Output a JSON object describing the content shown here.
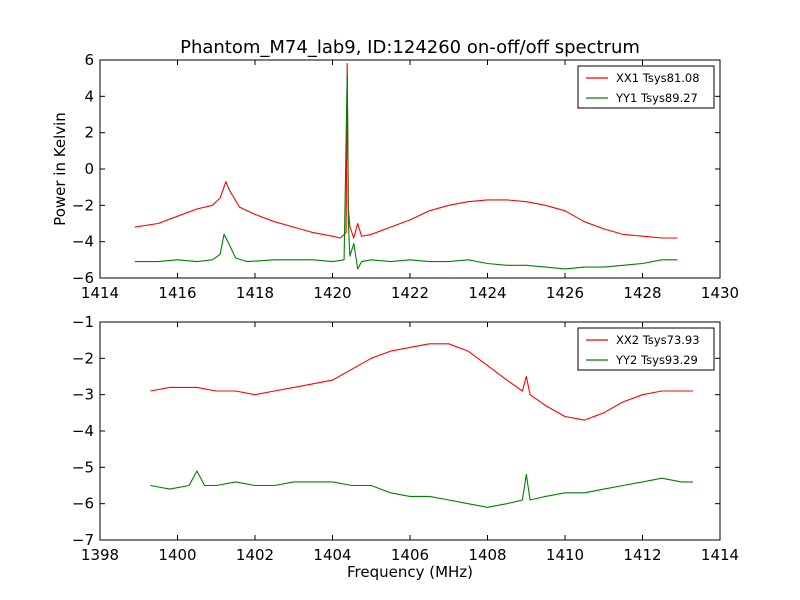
{
  "title": "Phantom_M74_lab9, ID:124260 on-off/off spectrum",
  "chart_data": [
    {
      "type": "line",
      "ylabel": "Power in Kelvin",
      "xlabel": "",
      "xlim": [
        1414,
        1430
      ],
      "ylim": [
        -6,
        6
      ],
      "xticks": [
        "1414",
        "1416",
        "1418",
        "1420",
        "1422",
        "1424",
        "1426",
        "1428",
        "1430"
      ],
      "yticks": [
        "−6",
        "−4",
        "−2",
        "0",
        "2",
        "4",
        "6"
      ],
      "grid": false,
      "legend_position": "top-right",
      "series": [
        {
          "name": "XX1 Tsys81.08",
          "color": "#ff0000",
          "x": [
            1414.9,
            1415.5,
            1416.0,
            1416.5,
            1416.9,
            1417.1,
            1417.25,
            1417.35,
            1417.6,
            1418.0,
            1418.5,
            1419.0,
            1419.5,
            1420.0,
            1420.2,
            1420.35,
            1420.38,
            1420.41,
            1420.45,
            1420.55,
            1420.65,
            1420.75,
            1421.0,
            1421.5,
            1422.0,
            1422.5,
            1423.0,
            1423.5,
            1424.0,
            1424.5,
            1425.0,
            1425.5,
            1426.0,
            1426.5,
            1427.0,
            1427.5,
            1428.0,
            1428.5,
            1428.9
          ],
          "values": [
            -3.2,
            -3.0,
            -2.6,
            -2.2,
            -2.0,
            -1.6,
            -0.7,
            -1.2,
            -2.1,
            -2.5,
            -2.9,
            -3.2,
            -3.5,
            -3.7,
            -3.8,
            -3.5,
            5.8,
            -2.2,
            -3.2,
            -3.8,
            -3.0,
            -3.7,
            -3.6,
            -3.2,
            -2.8,
            -2.3,
            -2.0,
            -1.8,
            -1.7,
            -1.7,
            -1.8,
            -2.0,
            -2.3,
            -2.9,
            -3.3,
            -3.6,
            -3.7,
            -3.8,
            -3.8
          ]
        },
        {
          "name": "YY1 Tsys89.27",
          "color": "#008000",
          "x": [
            1414.9,
            1415.5,
            1416.0,
            1416.5,
            1416.9,
            1417.1,
            1417.2,
            1417.3,
            1417.5,
            1417.8,
            1418.5,
            1419.0,
            1419.5,
            1420.0,
            1420.3,
            1420.38,
            1420.41,
            1420.45,
            1420.55,
            1420.65,
            1420.75,
            1421.0,
            1421.5,
            1422.0,
            1422.5,
            1423.0,
            1423.5,
            1424.0,
            1424.5,
            1425.0,
            1425.5,
            1426.0,
            1426.5,
            1427.0,
            1427.5,
            1428.0,
            1428.5,
            1428.9
          ],
          "values": [
            -5.1,
            -5.1,
            -5.0,
            -5.1,
            -5.0,
            -4.7,
            -3.6,
            -4.0,
            -4.9,
            -5.1,
            -5.0,
            -5.0,
            -5.0,
            -5.1,
            -5.0,
            5.2,
            -3.0,
            -4.8,
            -4.1,
            -5.5,
            -5.1,
            -5.0,
            -5.1,
            -5.0,
            -5.1,
            -5.1,
            -5.0,
            -5.2,
            -5.3,
            -5.3,
            -5.4,
            -5.5,
            -5.4,
            -5.4,
            -5.3,
            -5.2,
            -5.0,
            -5.0
          ]
        }
      ]
    },
    {
      "type": "line",
      "ylabel": "",
      "xlabel": "Frequency (MHz)",
      "xlim": [
        1398,
        1414
      ],
      "ylim": [
        -7,
        -1
      ],
      "xticks": [
        "1398",
        "1400",
        "1402",
        "1404",
        "1406",
        "1408",
        "1410",
        "1412",
        "1414"
      ],
      "yticks": [
        "−7",
        "−6",
        "−5",
        "−4",
        "−3",
        "−2",
        "−1"
      ],
      "grid": false,
      "legend_position": "top-right",
      "series": [
        {
          "name": "XX2 Tsys73.93",
          "color": "#ff0000",
          "x": [
            1399.3,
            1399.8,
            1400.5,
            1401.0,
            1401.5,
            1402.0,
            1402.5,
            1403.0,
            1403.5,
            1404.0,
            1404.5,
            1405.0,
            1405.5,
            1406.0,
            1406.5,
            1407.0,
            1407.5,
            1408.0,
            1408.5,
            1408.9,
            1409.0,
            1409.1,
            1409.5,
            1410.0,
            1410.5,
            1411.0,
            1411.5,
            1412.0,
            1412.5,
            1413.0,
            1413.3
          ],
          "values": [
            -2.9,
            -2.8,
            -2.8,
            -2.9,
            -2.9,
            -3.0,
            -2.9,
            -2.8,
            -2.7,
            -2.6,
            -2.3,
            -2.0,
            -1.8,
            -1.7,
            -1.6,
            -1.6,
            -1.8,
            -2.2,
            -2.6,
            -2.9,
            -2.5,
            -3.0,
            -3.3,
            -3.6,
            -3.7,
            -3.5,
            -3.2,
            -3.0,
            -2.9,
            -2.9,
            -2.9
          ]
        },
        {
          "name": "YY2 Tsys93.29",
          "color": "#008000",
          "x": [
            1399.3,
            1399.8,
            1400.3,
            1400.5,
            1400.7,
            1401.0,
            1401.5,
            1402.0,
            1402.5,
            1403.0,
            1403.5,
            1404.0,
            1404.5,
            1405.0,
            1405.5,
            1406.0,
            1406.5,
            1407.0,
            1407.5,
            1408.0,
            1408.5,
            1408.9,
            1409.0,
            1409.1,
            1409.5,
            1410.0,
            1410.5,
            1411.0,
            1411.5,
            1412.0,
            1412.5,
            1413.0,
            1413.3
          ],
          "values": [
            -5.5,
            -5.6,
            -5.5,
            -5.1,
            -5.5,
            -5.5,
            -5.4,
            -5.5,
            -5.5,
            -5.4,
            -5.4,
            -5.4,
            -5.5,
            -5.5,
            -5.7,
            -5.8,
            -5.8,
            -5.9,
            -6.0,
            -6.1,
            -6.0,
            -5.9,
            -5.2,
            -5.9,
            -5.8,
            -5.7,
            -5.7,
            -5.6,
            -5.5,
            -5.4,
            -5.3,
            -5.4,
            -5.4
          ]
        }
      ]
    }
  ]
}
